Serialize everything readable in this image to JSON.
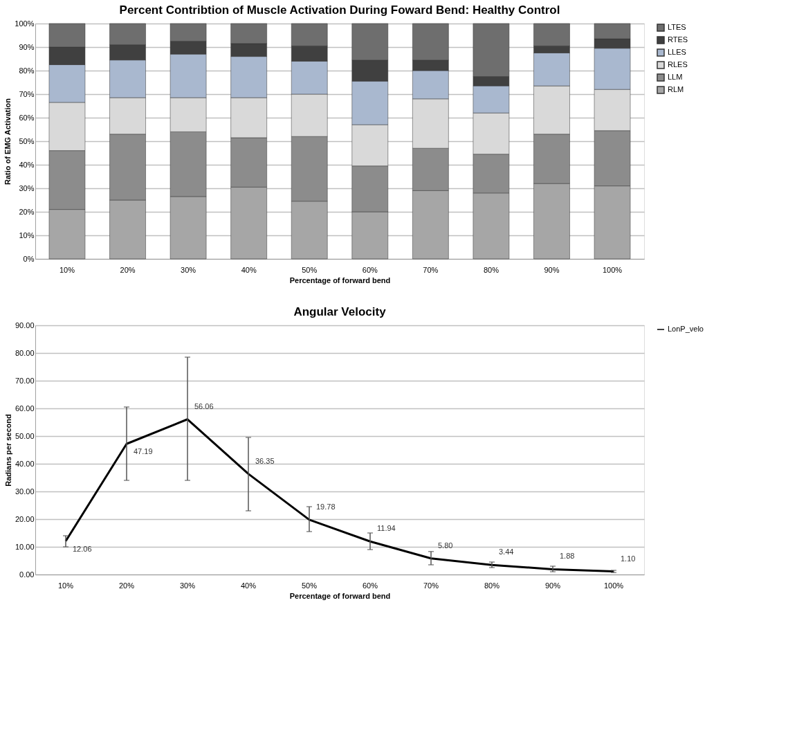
{
  "chart_data": [
    {
      "type": "bar",
      "stacked": true,
      "title": "Percent Contribtion  of Muscle Activation During Foward Bend: Healthy Control",
      "xlabel": "Percentage of forward bend",
      "ylabel": "Ratio of EMG Activation",
      "categories": [
        "10%",
        "20%",
        "30%",
        "40%",
        "50%",
        "60%",
        "70%",
        "80%",
        "90%",
        "100%"
      ],
      "series": [
        {
          "name": "RLM",
          "color": "#a6a6a6",
          "values": [
            21,
            25,
            26.5,
            30.5,
            24.5,
            20,
            29,
            28,
            32,
            31
          ]
        },
        {
          "name": "LLM",
          "color": "#8c8c8c",
          "values": [
            25,
            28,
            27.5,
            21,
            27.5,
            19.5,
            18,
            16.5,
            21,
            23.5
          ]
        },
        {
          "name": "RLES",
          "color": "#d9d9d9",
          "values": [
            20.5,
            15.5,
            14.5,
            17,
            18,
            17.5,
            21,
            17.5,
            20.5,
            17.5
          ]
        },
        {
          "name": "LLES",
          "color": "#a9b8cf",
          "values": [
            16,
            16,
            18.5,
            17.5,
            14,
            18.5,
            12,
            11.5,
            14,
            17.5
          ]
        },
        {
          "name": "RTES",
          "color": "#404040",
          "values": [
            7.5,
            6.5,
            5.5,
            5.5,
            6.5,
            9,
            4.5,
            4,
            3,
            4
          ]
        },
        {
          "name": "LTES",
          "color": "#6e6e6e",
          "values": [
            10,
            9,
            7.5,
            8.5,
            9.5,
            15.5,
            15.5,
            22.5,
            9.5,
            6.5
          ]
        }
      ],
      "ylim": [
        0,
        100
      ],
      "yticks": [
        {
          "value": 0,
          "label": "0%"
        },
        {
          "value": 10,
          "label": "10%"
        },
        {
          "value": 20,
          "label": "20%"
        },
        {
          "value": 30,
          "label": "30%"
        },
        {
          "value": 40,
          "label": "40%"
        },
        {
          "value": 50,
          "label": "50%"
        },
        {
          "value": 60,
          "label": "60%"
        },
        {
          "value": 70,
          "label": "70%"
        },
        {
          "value": 80,
          "label": "80%"
        },
        {
          "value": 90,
          "label": "90%"
        },
        {
          "value": 100,
          "label": "100%"
        }
      ],
      "grid": "y",
      "legend": "right"
    },
    {
      "type": "line",
      "title": "Angular Velocity",
      "xlabel": "Percentage of forward bend",
      "ylabel": "Radians per second",
      "categories": [
        "10%",
        "20%",
        "30%",
        "40%",
        "50%",
        "60%",
        "70%",
        "80%",
        "90%",
        "100%"
      ],
      "series": [
        {
          "name": "LonP_velo",
          "color": "#000000",
          "values": [
            12.06,
            47.19,
            56.06,
            36.35,
            19.78,
            11.94,
            5.8,
            3.44,
            1.88,
            1.1
          ],
          "errors": [
            [
              10,
              14
            ],
            [
              34,
              60.5
            ],
            [
              34,
              78.5
            ],
            [
              23,
              49.5
            ],
            [
              15.5,
              24.5
            ],
            [
              9,
              15
            ],
            [
              3.5,
              8.3
            ],
            [
              2.5,
              4.5
            ],
            [
              1,
              3
            ],
            [
              0.7,
              1.5
            ]
          ],
          "value_labels": [
            "12.06",
            "47.19",
            "56.06",
            "36.35",
            "19.78",
            "11.94",
            "5.80",
            "3.44",
            "1.88",
            "1.10"
          ]
        }
      ],
      "ylim": [
        0,
        90
      ],
      "yticks": [
        {
          "value": 0,
          "label": "0.00"
        },
        {
          "value": 10,
          "label": "10.00"
        },
        {
          "value": 20,
          "label": "20.00"
        },
        {
          "value": 30,
          "label": "30.00"
        },
        {
          "value": 40,
          "label": "40.00"
        },
        {
          "value": 50,
          "label": "50.00"
        },
        {
          "value": 60,
          "label": "60.00"
        },
        {
          "value": 70,
          "label": "70.00"
        },
        {
          "value": 80,
          "label": "80.00"
        },
        {
          "value": 90,
          "label": "90.00"
        }
      ],
      "grid": "y",
      "legend": "right",
      "marker": "none",
      "line_style": "solid"
    }
  ]
}
